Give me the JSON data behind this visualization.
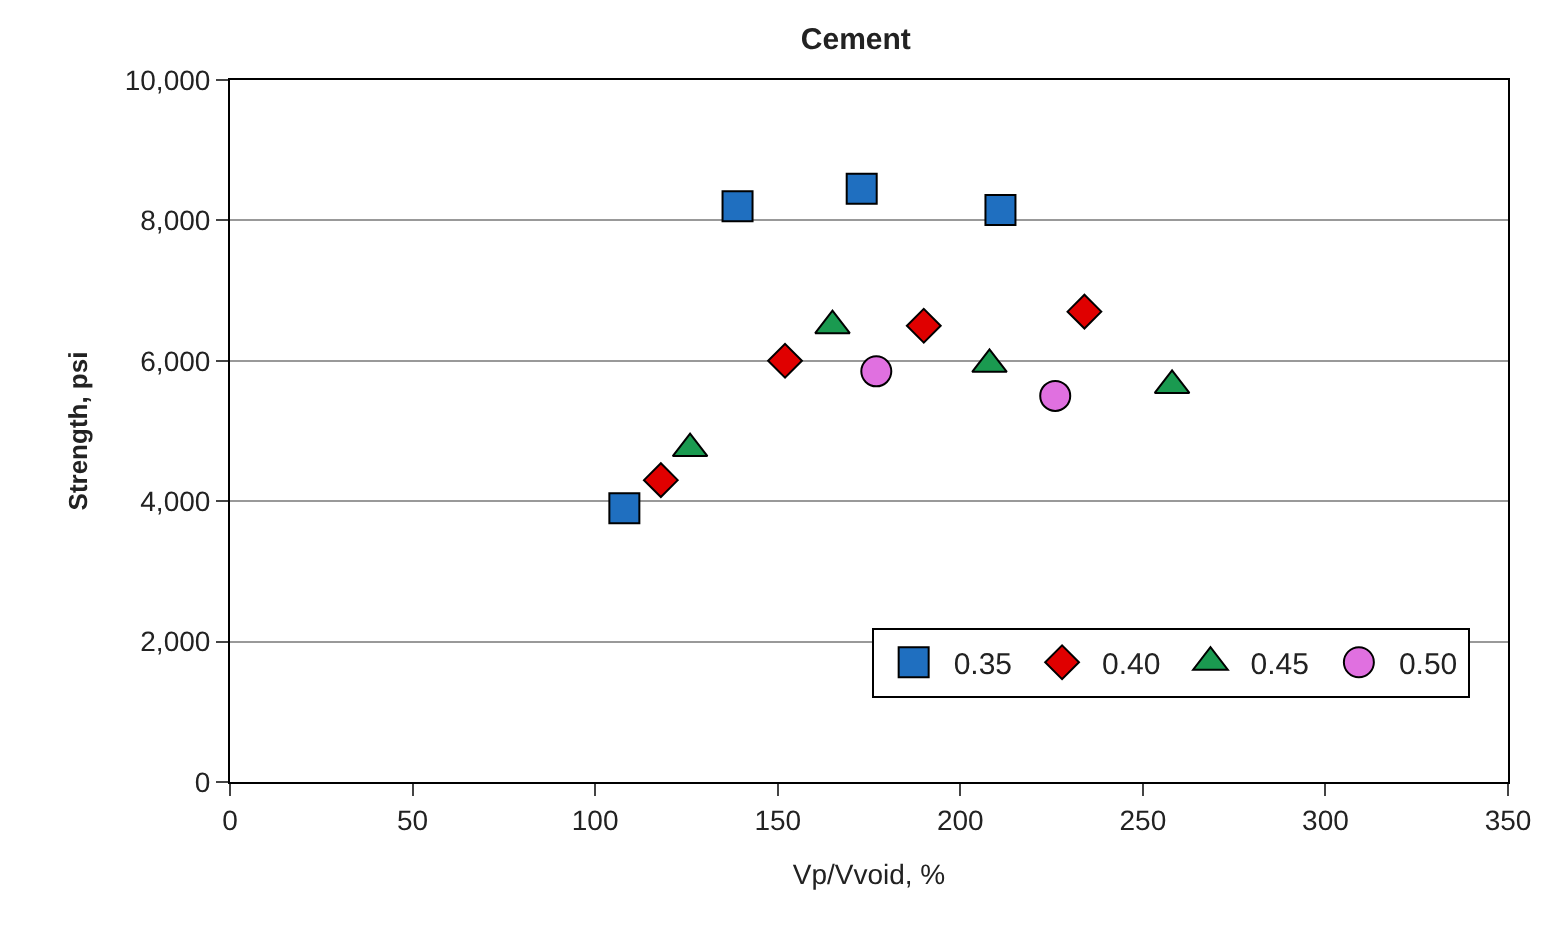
{
  "chart_data": {
    "type": "scatter",
    "title": "Cement",
    "xlabel": "Vp/Vvoid, %",
    "ylabel": "Strength, psi",
    "series": [
      {
        "name": "0.35",
        "color": "#1f6fc0",
        "marker": "square",
        "x": [
          108,
          139,
          173,
          211
        ],
        "values": [
          3900,
          8200,
          8450,
          8150
        ]
      },
      {
        "name": "0.40",
        "color": "#e00000",
        "marker": "diamond",
        "x": [
          118,
          152,
          190,
          234
        ],
        "values": [
          4300,
          6000,
          6500,
          6700
        ]
      },
      {
        "name": "0.45",
        "color": "#1a9a50",
        "marker": "triangle",
        "x": [
          126,
          165,
          208,
          258
        ],
        "values": [
          4750,
          6500,
          5950,
          5650
        ]
      },
      {
        "name": "0.50",
        "color": "#e070e0",
        "marker": "circle",
        "x": [
          177,
          226
        ],
        "values": [
          5850,
          5500
        ]
      }
    ],
    "xlim": [
      0,
      350
    ],
    "xticks": [
      0,
      50,
      100,
      150,
      200,
      250,
      300,
      350
    ],
    "ylim": [
      0,
      10000
    ],
    "yticks": [
      0,
      {
        "value": 2000,
        "label": "2,000"
      },
      {
        "value": 4000,
        "label": "4,000"
      },
      {
        "value": 6000,
        "label": "6,000"
      },
      {
        "value": 8000,
        "label": "8,000"
      },
      {
        "value": 10000,
        "label": "10,000"
      }
    ],
    "grid": "y",
    "legend": "bottom right"
  }
}
